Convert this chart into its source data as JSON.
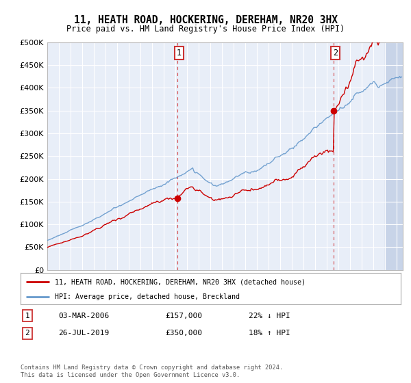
{
  "title": "11, HEATH ROAD, HOCKERING, DEREHAM, NR20 3HX",
  "subtitle": "Price paid vs. HM Land Registry's House Price Index (HPI)",
  "ylabel_ticks": [
    "£0",
    "£50K",
    "£100K",
    "£150K",
    "£200K",
    "£250K",
    "£300K",
    "£350K",
    "£400K",
    "£450K",
    "£500K"
  ],
  "ytick_vals": [
    0,
    50000,
    100000,
    150000,
    200000,
    250000,
    300000,
    350000,
    400000,
    450000,
    500000
  ],
  "ylim": [
    0,
    500000
  ],
  "xlim_start": 1995.0,
  "xlim_end": 2025.5,
  "sale1_x": 2006.17,
  "sale1_y": 157000,
  "sale2_x": 2019.57,
  "sale2_y": 350000,
  "sale1_label": "03-MAR-2006",
  "sale1_price": "£157,000",
  "sale1_hpi": "22% ↓ HPI",
  "sale2_label": "26-JUL-2019",
  "sale2_price": "£350,000",
  "sale2_hpi": "18% ↑ HPI",
  "legend_red": "11, HEATH ROAD, HOCKERING, DEREHAM, NR20 3HX (detached house)",
  "legend_blue": "HPI: Average price, detached house, Breckland",
  "footer": "Contains HM Land Registry data © Crown copyright and database right 2024.\nThis data is licensed under the Open Government Licence v3.0.",
  "plot_bg": "#e8eef8",
  "hatch_color": "#c8d4e8",
  "grid_color": "#ffffff",
  "red_color": "#cc0000",
  "blue_color": "#6699cc"
}
